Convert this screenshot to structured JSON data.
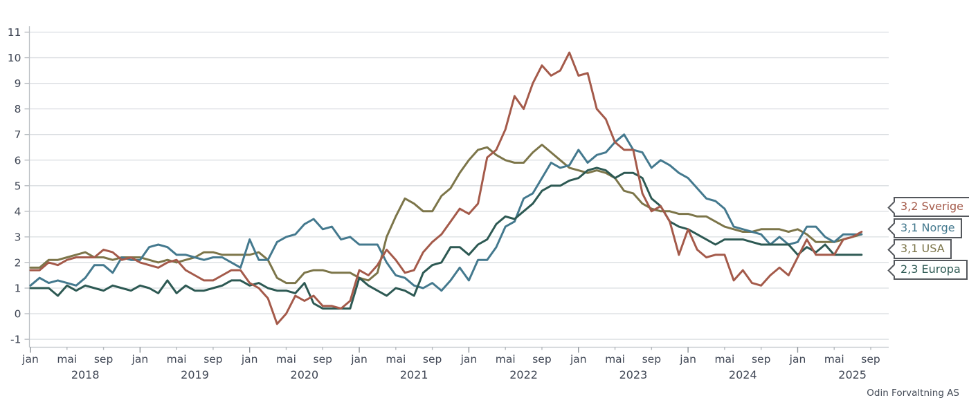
{
  "attribution": "Odin Forvaltning AS",
  "colors": {
    "grid": "#dadde1",
    "axis_line": "#bcc0c5",
    "major_tick": "#8b9197",
    "minor_tick": "#b3b8bd",
    "axis_text": "#3f4654",
    "callout_border": "#54575c"
  },
  "chart_data": {
    "type": "line",
    "title": "",
    "xlabel": "",
    "ylabel": "",
    "ylim": [
      -1,
      11
    ],
    "y_ticks": [
      -1,
      0,
      1,
      2,
      3,
      4,
      5,
      6,
      7,
      8,
      9,
      10,
      11
    ],
    "grid": true,
    "legend_position": "right-callouts",
    "x_axis": {
      "start_year": 2018,
      "start_month": "jan",
      "month_tick_labels": [
        "jan",
        "mai",
        "sep"
      ],
      "month_tick_offsets": [
        0,
        4,
        8
      ],
      "years": [
        "2018",
        "2019",
        "2020",
        "2021",
        "2022",
        "2023",
        "2024",
        "2025"
      ]
    },
    "series": [
      {
        "name": "Sverige",
        "callout": "3,2 Sverige",
        "last_value": "3,2",
        "color": "#a45a4a",
        "values": [
          1.7,
          1.7,
          2.0,
          1.9,
          2.1,
          2.2,
          2.2,
          2.2,
          2.5,
          2.4,
          2.1,
          2.2,
          2.0,
          1.9,
          1.8,
          2.0,
          2.1,
          1.7,
          1.5,
          1.3,
          1.3,
          1.5,
          1.7,
          1.7,
          1.2,
          1.0,
          0.6,
          -0.4,
          0.0,
          0.7,
          0.5,
          0.7,
          0.3,
          0.3,
          0.2,
          0.5,
          1.7,
          1.5,
          1.9,
          2.5,
          2.1,
          1.6,
          1.7,
          2.4,
          2.8,
          3.1,
          3.6,
          4.1,
          3.9,
          4.3,
          6.1,
          6.4,
          7.2,
          8.5,
          8.0,
          9.0,
          9.7,
          9.3,
          9.5,
          10.2,
          9.3,
          9.4,
          8.0,
          7.6,
          6.7,
          6.4,
          6.4,
          4.7,
          4.0,
          4.2,
          3.6,
          2.3,
          3.3,
          2.5,
          2.2,
          2.3,
          2.3,
          1.3,
          1.7,
          1.2,
          1.1,
          1.5,
          1.8,
          1.5,
          2.2,
          2.9,
          2.3,
          2.3,
          2.3,
          2.9,
          3.0,
          3.2
        ]
      },
      {
        "name": "Norge",
        "callout": "3,1 Norge",
        "last_value": "3,1",
        "color": "#44798e",
        "values": [
          1.1,
          1.4,
          1.2,
          1.3,
          1.2,
          1.1,
          1.4,
          1.9,
          1.9,
          1.6,
          2.2,
          2.1,
          2.1,
          2.6,
          2.7,
          2.6,
          2.3,
          2.3,
          2.2,
          2.1,
          2.2,
          2.2,
          2.0,
          1.8,
          2.9,
          2.1,
          2.1,
          2.8,
          3.0,
          3.1,
          3.5,
          3.7,
          3.3,
          3.4,
          2.9,
          3.0,
          2.7,
          2.7,
          2.7,
          2.0,
          1.5,
          1.4,
          1.1,
          1.0,
          1.2,
          0.9,
          1.3,
          1.8,
          1.3,
          2.1,
          2.1,
          2.6,
          3.4,
          3.6,
          4.5,
          4.7,
          5.3,
          5.9,
          5.7,
          5.8,
          6.4,
          5.9,
          6.2,
          6.3,
          6.7,
          7.0,
          6.4,
          6.3,
          5.7,
          6.0,
          5.8,
          5.5,
          5.3,
          4.9,
          4.5,
          4.4,
          4.1,
          3.4,
          3.3,
          3.2,
          3.1,
          2.7,
          3.0,
          2.7,
          2.8,
          3.4,
          3.4,
          3.0,
          2.8,
          3.1,
          3.1,
          3.1
        ]
      },
      {
        "name": "USA",
        "callout": "3,1 USA",
        "last_value": "3,1",
        "color": "#7c7549",
        "values": [
          1.8,
          1.8,
          2.1,
          2.1,
          2.2,
          2.3,
          2.4,
          2.2,
          2.2,
          2.1,
          2.2,
          2.2,
          2.2,
          2.1,
          2.0,
          2.1,
          2.0,
          2.1,
          2.2,
          2.4,
          2.4,
          2.3,
          2.3,
          2.3,
          2.3,
          2.4,
          2.1,
          1.4,
          1.2,
          1.2,
          1.6,
          1.7,
          1.7,
          1.6,
          1.6,
          1.6,
          1.4,
          1.3,
          1.6,
          3.0,
          3.8,
          4.5,
          4.3,
          4.0,
          4.0,
          4.6,
          4.9,
          5.5,
          6.0,
          6.4,
          6.5,
          6.2,
          6.0,
          5.9,
          5.9,
          6.3,
          6.6,
          6.3,
          6.0,
          5.7,
          5.6,
          5.5,
          5.6,
          5.5,
          5.3,
          4.8,
          4.7,
          4.3,
          4.1,
          4.0,
          4.0,
          3.9,
          3.9,
          3.8,
          3.8,
          3.6,
          3.4,
          3.3,
          3.2,
          3.2,
          3.3,
          3.3,
          3.3,
          3.2,
          3.3,
          3.1,
          2.8,
          2.8,
          2.8,
          2.9,
          3.0,
          3.1
        ]
      },
      {
        "name": "Europa",
        "callout": "2,3 Europa",
        "last_value": "2,3",
        "color": "#2d5953",
        "values": [
          1.0,
          1.0,
          1.0,
          0.7,
          1.1,
          0.9,
          1.1,
          1.0,
          0.9,
          1.1,
          1.0,
          0.9,
          1.1,
          1.0,
          0.8,
          1.3,
          0.8,
          1.1,
          0.9,
          0.9,
          1.0,
          1.1,
          1.3,
          1.3,
          1.1,
          1.2,
          1.0,
          0.9,
          0.9,
          0.8,
          1.2,
          0.4,
          0.2,
          0.2,
          0.2,
          0.2,
          1.4,
          1.1,
          0.9,
          0.7,
          1.0,
          0.9,
          0.7,
          1.6,
          1.9,
          2.0,
          2.6,
          2.6,
          2.3,
          2.7,
          2.9,
          3.5,
          3.8,
          3.7,
          4.0,
          4.3,
          4.8,
          5.0,
          5.0,
          5.2,
          5.3,
          5.6,
          5.7,
          5.6,
          5.3,
          5.5,
          5.5,
          5.3,
          4.5,
          4.2,
          3.6,
          3.4,
          3.3,
          3.1,
          2.9,
          2.7,
          2.9,
          2.9,
          2.9,
          2.8,
          2.7,
          2.7,
          2.7,
          2.7,
          2.3,
          2.6,
          2.4,
          2.7,
          2.3,
          2.3,
          2.3,
          2.3
        ]
      }
    ]
  }
}
